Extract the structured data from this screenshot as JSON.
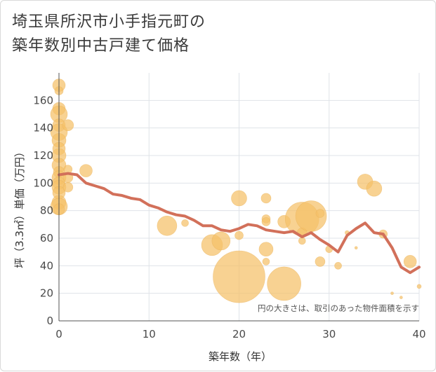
{
  "chart_data": {
    "type": "scatter",
    "title_lines": [
      "埼玉県所沢市小手指元町の",
      "築年数別中古戸建て価格"
    ],
    "xlabel": "築年数（年）",
    "ylabel": "坪（3.3㎡）単価（万円）",
    "xlim": [
      0,
      40
    ],
    "ylim": [
      0,
      180
    ],
    "xticks": [
      0,
      10,
      20,
      30,
      40
    ],
    "yticks": [
      0,
      20,
      40,
      60,
      80,
      100,
      120,
      140,
      160
    ],
    "grid": true,
    "note": "円の大きさは、取引のあった物件面積を示す",
    "colors": {
      "bubble": "#f5c168",
      "line": "#d2705a",
      "grid": "#dfe3e8",
      "axis": "#555555"
    },
    "points": [
      {
        "x": 0,
        "y": 171,
        "s": 9
      },
      {
        "x": 0,
        "y": 167,
        "s": 6
      },
      {
        "x": 0,
        "y": 154,
        "s": 9
      },
      {
        "x": 0,
        "y": 150,
        "s": 12
      },
      {
        "x": 0,
        "y": 142,
        "s": 9
      },
      {
        "x": 0,
        "y": 137,
        "s": 12
      },
      {
        "x": 0,
        "y": 131,
        "s": 10
      },
      {
        "x": 0,
        "y": 125,
        "s": 9
      },
      {
        "x": 0,
        "y": 120,
        "s": 10
      },
      {
        "x": 0,
        "y": 113,
        "s": 10
      },
      {
        "x": 0,
        "y": 108,
        "s": 8
      },
      {
        "x": 0,
        "y": 104,
        "s": 10
      },
      {
        "x": 0,
        "y": 100,
        "s": 9
      },
      {
        "x": 0,
        "y": 97,
        "s": 10
      },
      {
        "x": 0,
        "y": 93,
        "s": 9
      },
      {
        "x": 0,
        "y": 86,
        "s": 10
      },
      {
        "x": 0,
        "y": 83,
        "s": 12
      },
      {
        "x": 0,
        "y": 81,
        "s": 8
      },
      {
        "x": 1,
        "y": 142,
        "s": 8
      },
      {
        "x": 1,
        "y": 110,
        "s": 6
      },
      {
        "x": 1,
        "y": 104,
        "s": 7
      },
      {
        "x": 1,
        "y": 97,
        "s": 7
      },
      {
        "x": 3,
        "y": 109,
        "s": 9
      },
      {
        "x": 12,
        "y": 69,
        "s": 14
      },
      {
        "x": 14,
        "y": 71,
        "s": 5
      },
      {
        "x": 17,
        "y": 55,
        "s": 15
      },
      {
        "x": 18,
        "y": 58,
        "s": 13
      },
      {
        "x": 20,
        "y": 89,
        "s": 11
      },
      {
        "x": 20,
        "y": 62,
        "s": 6
      },
      {
        "x": 20,
        "y": 32,
        "s": 37
      },
      {
        "x": 23,
        "y": 89,
        "s": 7
      },
      {
        "x": 23,
        "y": 74,
        "s": 6
      },
      {
        "x": 23,
        "y": 72,
        "s": 6
      },
      {
        "x": 23,
        "y": 52,
        "s": 10
      },
      {
        "x": 23,
        "y": 43,
        "s": 5
      },
      {
        "x": 25,
        "y": 72,
        "s": 9
      },
      {
        "x": 25,
        "y": 27,
        "s": 24
      },
      {
        "x": 27,
        "y": 74,
        "s": 24
      },
      {
        "x": 27,
        "y": 64,
        "s": 7
      },
      {
        "x": 27,
        "y": 58,
        "s": 5
      },
      {
        "x": 28,
        "y": 76,
        "s": 22
      },
      {
        "x": 29,
        "y": 78,
        "s": 6
      },
      {
        "x": 29,
        "y": 43,
        "s": 7
      },
      {
        "x": 30,
        "y": 52,
        "s": 5
      },
      {
        "x": 31,
        "y": 40,
        "s": 5
      },
      {
        "x": 32,
        "y": 64,
        "s": 3
      },
      {
        "x": 33,
        "y": 53,
        "s": 2
      },
      {
        "x": 34,
        "y": 101,
        "s": 11
      },
      {
        "x": 35,
        "y": 96,
        "s": 11
      },
      {
        "x": 36,
        "y": 63,
        "s": 6
      },
      {
        "x": 37,
        "y": 20,
        "s": 2
      },
      {
        "x": 38,
        "y": 17,
        "s": 2
      },
      {
        "x": 39,
        "y": 43,
        "s": 9
      },
      {
        "x": 40,
        "y": 25,
        "s": 3
      }
    ],
    "trend": {
      "x": [
        0,
        1,
        2,
        3,
        4,
        5,
        6,
        7,
        8,
        9,
        10,
        11,
        12,
        13,
        14,
        15,
        16,
        17,
        18,
        19,
        20,
        21,
        22,
        23,
        24,
        25,
        26,
        27,
        28,
        29,
        30,
        31,
        32,
        33,
        34,
        35,
        36,
        37,
        38,
        39,
        40
      ],
      "y": [
        106,
        107,
        106,
        100,
        98,
        96,
        92,
        91,
        89,
        88,
        84,
        82,
        79,
        77,
        76,
        73,
        69,
        69,
        66,
        65,
        67,
        70,
        69,
        66,
        65,
        64,
        65,
        61,
        64,
        59,
        55,
        50,
        62,
        67,
        71,
        64,
        63,
        53,
        39,
        35,
        39
      ]
    }
  }
}
